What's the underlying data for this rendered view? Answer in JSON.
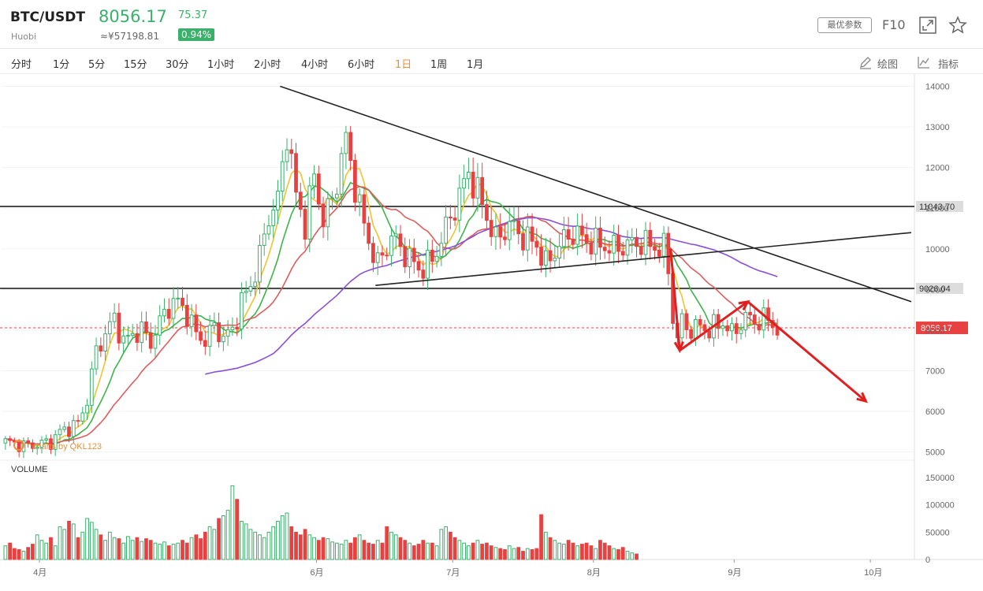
{
  "header": {
    "pair": "BTC/USDT",
    "exchange": "Huobi",
    "price": "8056.17",
    "change": "75.37",
    "cny_price": "≈¥57198.81",
    "change_pct": "0.94%",
    "best_params_label": "最优参数",
    "f10_label": "F10",
    "colors": {
      "up": "#3bb06b",
      "down": "#e84141"
    }
  },
  "toolbar": {
    "periods": [
      "分时",
      "1分",
      "5分",
      "15分",
      "30分",
      "1小时",
      "2小时",
      "4小时",
      "6小时",
      "1日",
      "1周",
      "1月"
    ],
    "active_period": "1日",
    "draw_label": "绘图",
    "indicator_label": "指标"
  },
  "chart_data": {
    "type": "candlestick",
    "price_axis": {
      "ticks": [
        "14000",
        "13000",
        "12000",
        "11000",
        "10000",
        "9000",
        "8000",
        "7000",
        "6000",
        "5000"
      ],
      "range": [
        4800,
        14300
      ]
    },
    "volume_axis": {
      "label": "VOLUME",
      "ticks": [
        "150000",
        "100000",
        "50000",
        "0"
      ],
      "range": [
        0,
        150000
      ]
    },
    "month_labels": [
      {
        "label": "4月",
        "day": 8
      },
      {
        "label": "6月",
        "day": 69
      },
      {
        "label": "7月",
        "day": 99
      },
      {
        "label": "8月",
        "day": 130
      },
      {
        "label": "9月",
        "day": 161
      },
      {
        "label": "10月",
        "day": 191
      }
    ],
    "total_days": 200,
    "current_price": 8056.17,
    "current_price_label": "8056.17",
    "horizontal_levels": [
      {
        "value": 11043.7,
        "label": "11043.70"
      },
      {
        "value": 9026.04,
        "label": "9026.04"
      }
    ],
    "price_path": [
      [
        0,
        5250
      ],
      [
        5,
        5150
      ],
      [
        10,
        5250
      ],
      [
        12,
        5500
      ],
      [
        16,
        5700
      ],
      [
        18,
        6300
      ],
      [
        20,
        7500
      ],
      [
        22,
        7900
      ],
      [
        24,
        8300
      ],
      [
        26,
        7700
      ],
      [
        28,
        7900
      ],
      [
        30,
        8000
      ],
      [
        32,
        7700
      ],
      [
        34,
        8200
      ],
      [
        36,
        8600
      ],
      [
        38,
        8700
      ],
      [
        40,
        8400
      ],
      [
        42,
        7900
      ],
      [
        44,
        7750
      ],
      [
        46,
        8100
      ],
      [
        48,
        7800
      ],
      [
        50,
        8000
      ],
      [
        52,
        8700
      ],
      [
        54,
        9100
      ],
      [
        56,
        9800
      ],
      [
        58,
        10800
      ],
      [
        60,
        11200
      ],
      [
        62,
        12900
      ],
      [
        64,
        11300
      ],
      [
        66,
        10600
      ],
      [
        68,
        11800
      ],
      [
        70,
        10700
      ],
      [
        72,
        11200
      ],
      [
        75,
        12700
      ],
      [
        78,
        11000
      ],
      [
        80,
        10200
      ],
      [
        82,
        9600
      ],
      [
        85,
        10300
      ],
      [
        88,
        9900
      ],
      [
        91,
        9500
      ],
      [
        94,
        9700
      ],
      [
        97,
        10500
      ],
      [
        100,
        11300
      ],
      [
        102,
        11900
      ],
      [
        105,
        11100
      ],
      [
        108,
        10200
      ],
      [
        111,
        10600
      ],
      [
        114,
        10300
      ],
      [
        117,
        10100
      ],
      [
        119,
        9600
      ],
      [
        122,
        10100
      ],
      [
        125,
        10400
      ],
      [
        128,
        10200
      ],
      [
        131,
        10100
      ],
      [
        134,
        10000
      ],
      [
        137,
        10100
      ],
      [
        140,
        10150
      ],
      [
        143,
        10050
      ],
      [
        145,
        10000
      ],
      [
        146,
        9500
      ],
      [
        147,
        8300
      ],
      [
        148,
        7800
      ],
      [
        149,
        8200
      ],
      [
        151,
        8000
      ],
      [
        153,
        8100
      ],
      [
        155,
        8000
      ],
      [
        158,
        8200
      ],
      [
        160,
        7900
      ],
      [
        163,
        8300
      ],
      [
        166,
        8200
      ],
      [
        168,
        8300
      ],
      [
        170,
        8000
      ]
    ],
    "volumes": [
      25,
      30,
      20,
      18,
      15,
      22,
      28,
      45,
      35,
      30,
      40,
      25,
      60,
      55,
      70,
      65,
      40,
      50,
      75,
      68,
      55,
      45,
      35,
      50,
      40,
      38,
      30,
      42,
      35,
      40,
      33,
      38,
      35,
      30,
      28,
      32,
      25,
      28,
      30,
      35,
      30,
      40,
      45,
      38,
      50,
      60,
      55,
      75,
      80,
      90,
      135,
      110,
      70,
      65,
      55,
      50,
      45,
      40,
      50,
      60,
      70,
      80,
      85,
      60,
      50,
      45,
      55,
      45,
      40,
      35,
      40,
      38,
      32,
      30,
      28,
      35,
      30,
      40,
      45,
      35,
      30,
      28,
      35,
      30,
      60,
      50,
      45,
      40,
      35,
      30,
      25,
      28,
      35,
      30,
      30,
      25,
      55,
      60,
      50,
      40,
      35,
      30,
      25,
      30,
      35,
      28,
      30,
      25,
      22,
      20,
      18,
      25,
      20,
      22,
      15,
      20,
      18,
      20,
      82,
      50,
      40,
      35,
      30,
      28,
      35,
      30,
      25,
      28,
      30,
      25,
      20,
      35,
      30,
      25,
      20,
      18,
      22,
      15,
      12,
      10
    ],
    "line_colors": {
      "ma1": "#f2c230",
      "ma2": "#3bb54a",
      "ma3": "#e05c5c",
      "ma4": "#8a4fd8"
    },
    "drawn_lines": [
      {
        "from": [
          61,
          14000
        ],
        "to": [
          200,
          8700
        ],
        "color": "#222"
      },
      {
        "from": [
          82,
          9100
        ],
        "to": [
          200,
          10400
        ],
        "color": "#222"
      }
    ],
    "arrows": [
      {
        "from": [
          147,
          10000
        ],
        "to": [
          149,
          7500
        ],
        "color": "#e02020"
      },
      {
        "from": [
          149,
          7500
        ],
        "to": [
          164,
          8700
        ],
        "color": "#e02020"
      },
      {
        "from": [
          164,
          8700
        ],
        "to": [
          190,
          6250
        ],
        "color": "#e02020"
      }
    ],
    "watermark": "charts by QKL123"
  }
}
